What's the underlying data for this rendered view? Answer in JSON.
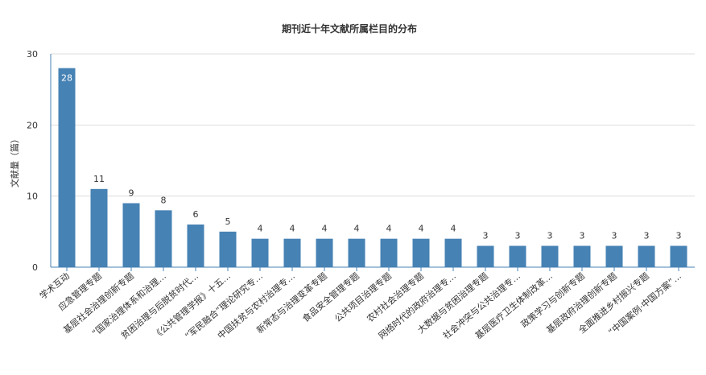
{
  "chart_data": {
    "type": "bar",
    "title": "期刊近十年文献所属栏目的分布",
    "xlabel": "",
    "ylabel": "文献量（篇）",
    "ylim": [
      0,
      30
    ],
    "yticks": [
      0,
      10,
      20,
      30
    ],
    "grid": true,
    "bar_color": "#4682b4",
    "categories": [
      "学术互动",
      "应急管理专题",
      "基层社会治理创新专题",
      "“国家治理体系和治理…",
      "贫困治理与后脱贫时代…",
      "《公共管理学报》十五…",
      "“军民融合”理论研究专…",
      "中国扶贫与农村治理专…",
      "新常态与治理变革专题",
      "食品安全管理专题",
      "公共项目治理专题",
      "农村社会治理专题",
      "网络时代的政府治理专…",
      "大数据与贫困治理专题",
      "社会冲突与公共治理专…",
      "基层医疗卫生体制改革…",
      "政策学习与创新专题",
      "基层政府治理创新专题",
      "全面推进乡村振兴专题",
      "“中国案例·中国方案”…"
    ],
    "values": [
      28,
      11,
      9,
      8,
      6,
      5,
      4,
      4,
      4,
      4,
      4,
      4,
      4,
      3,
      3,
      3,
      3,
      3,
      3,
      3
    ]
  }
}
